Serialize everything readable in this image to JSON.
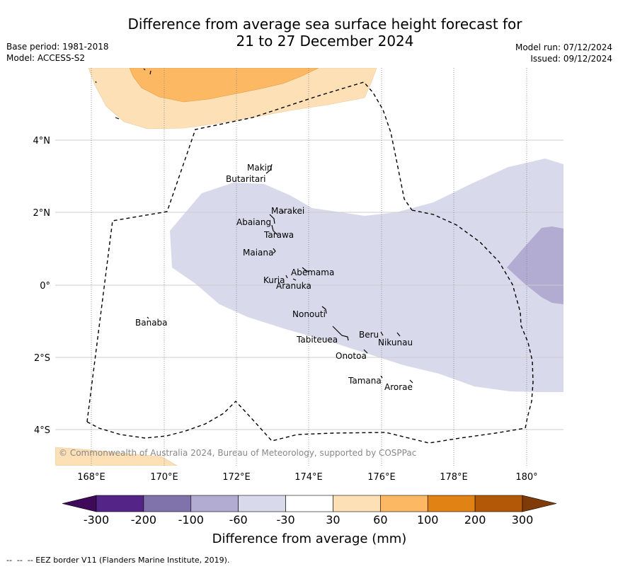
{
  "title": {
    "line1": "Difference from average sea surface height forecast for",
    "line2": "21 to 27 December 2024"
  },
  "meta_left": {
    "base_period": "Base period: 1981-2018",
    "model": "Model: ACCESS-S2"
  },
  "meta_right": {
    "model_run": "Model run: 07/12/2024",
    "issued": "Issued: 09/12/2024"
  },
  "axes": {
    "lon_labels": [
      "168°E",
      "170°E",
      "172°E",
      "174°E",
      "176°E",
      "178°E",
      "180°"
    ],
    "lat_labels": [
      "4°N",
      "2°N",
      "0°",
      "2°S",
      "4°S"
    ]
  },
  "places": [
    {
      "name": "Makin",
      "lon": 172.9,
      "lat": 3.2
    },
    {
      "name": "Butaritari",
      "lon": 172.8,
      "lat": 3.1
    },
    {
      "name": "Marakei",
      "lon": 173.3,
      "lat": 2.0
    },
    {
      "name": "Abaiang",
      "lon": 172.9,
      "lat": 1.8
    },
    {
      "name": "Tarawa",
      "lon": 173.0,
      "lat": 1.4
    },
    {
      "name": "Maiana",
      "lon": 173.0,
      "lat": 1.0
    },
    {
      "name": "Abemama",
      "lon": 173.9,
      "lat": 0.4
    },
    {
      "name": "Kuria",
      "lon": 173.4,
      "lat": 0.2
    },
    {
      "name": "Aranuka",
      "lon": 173.6,
      "lat": 0.2
    },
    {
      "name": "Banaba",
      "lon": 169.5,
      "lat": -0.9
    },
    {
      "name": "Nonouti",
      "lon": 174.4,
      "lat": -0.7
    },
    {
      "name": "Tabiteuea",
      "lon": 174.8,
      "lat": -1.3
    },
    {
      "name": "Beru",
      "lon": 176.0,
      "lat": -1.3
    },
    {
      "name": "Nikunau",
      "lon": 176.4,
      "lat": -1.4
    },
    {
      "name": "Onotoa",
      "lon": 175.6,
      "lat": -1.8
    },
    {
      "name": "Tamana",
      "lon": 176.0,
      "lat": -2.5
    },
    {
      "name": "Arorae",
      "lon": 176.8,
      "lat": -2.7
    }
  ],
  "copyright": "© Commonwealth of Australia 2024, Bureau of Meteorology, supported by COSPPac",
  "colorbar": {
    "label": "Difference from average (mm)",
    "ticks": [
      "-300",
      "-200",
      "-100",
      "-60",
      "-30",
      "30",
      "60",
      "100",
      "200",
      "300"
    ],
    "colors": [
      "#3f0a5a",
      "#542587",
      "#8073ac",
      "#b2abd2",
      "#d8daeb",
      "#ffffff",
      "#fee0b6",
      "#fdb863",
      "#e08214",
      "#b35806",
      "#7f3b08"
    ]
  },
  "footer": "--  --  -- EEZ border V11 (Flanders Marine Institute, 2019)."
}
